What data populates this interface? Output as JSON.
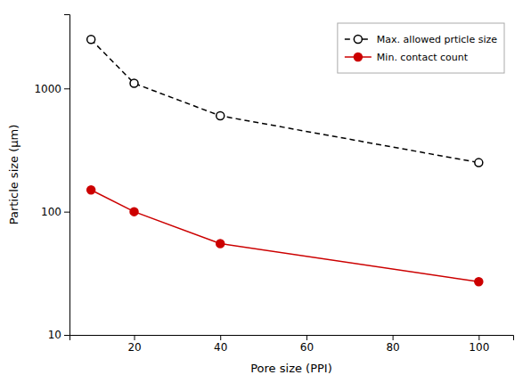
{
  "chart_data": {
    "type": "line",
    "x": [
      10,
      20,
      40,
      100
    ],
    "series": [
      {
        "name": "Max. allowed prticle size",
        "color": "#000000",
        "line_style": "dashed",
        "marker": "circle-open",
        "values": [
          2500,
          1100,
          600,
          250
        ]
      },
      {
        "name": "Min. contact count",
        "color": "#cc0000",
        "line_style": "solid",
        "marker": "circle",
        "values": [
          150,
          100,
          55,
          27
        ]
      }
    ],
    "xlabel": "Pore size (PPI)",
    "ylabel": "Particle size (μm)",
    "xlim": [
      5,
      108
    ],
    "ylim": [
      10,
      4000
    ],
    "xticks": [
      20,
      40,
      60,
      80,
      100
    ],
    "yticks": [
      10,
      100,
      1000
    ],
    "log": "y",
    "grid": false,
    "legend": "upper right"
  }
}
